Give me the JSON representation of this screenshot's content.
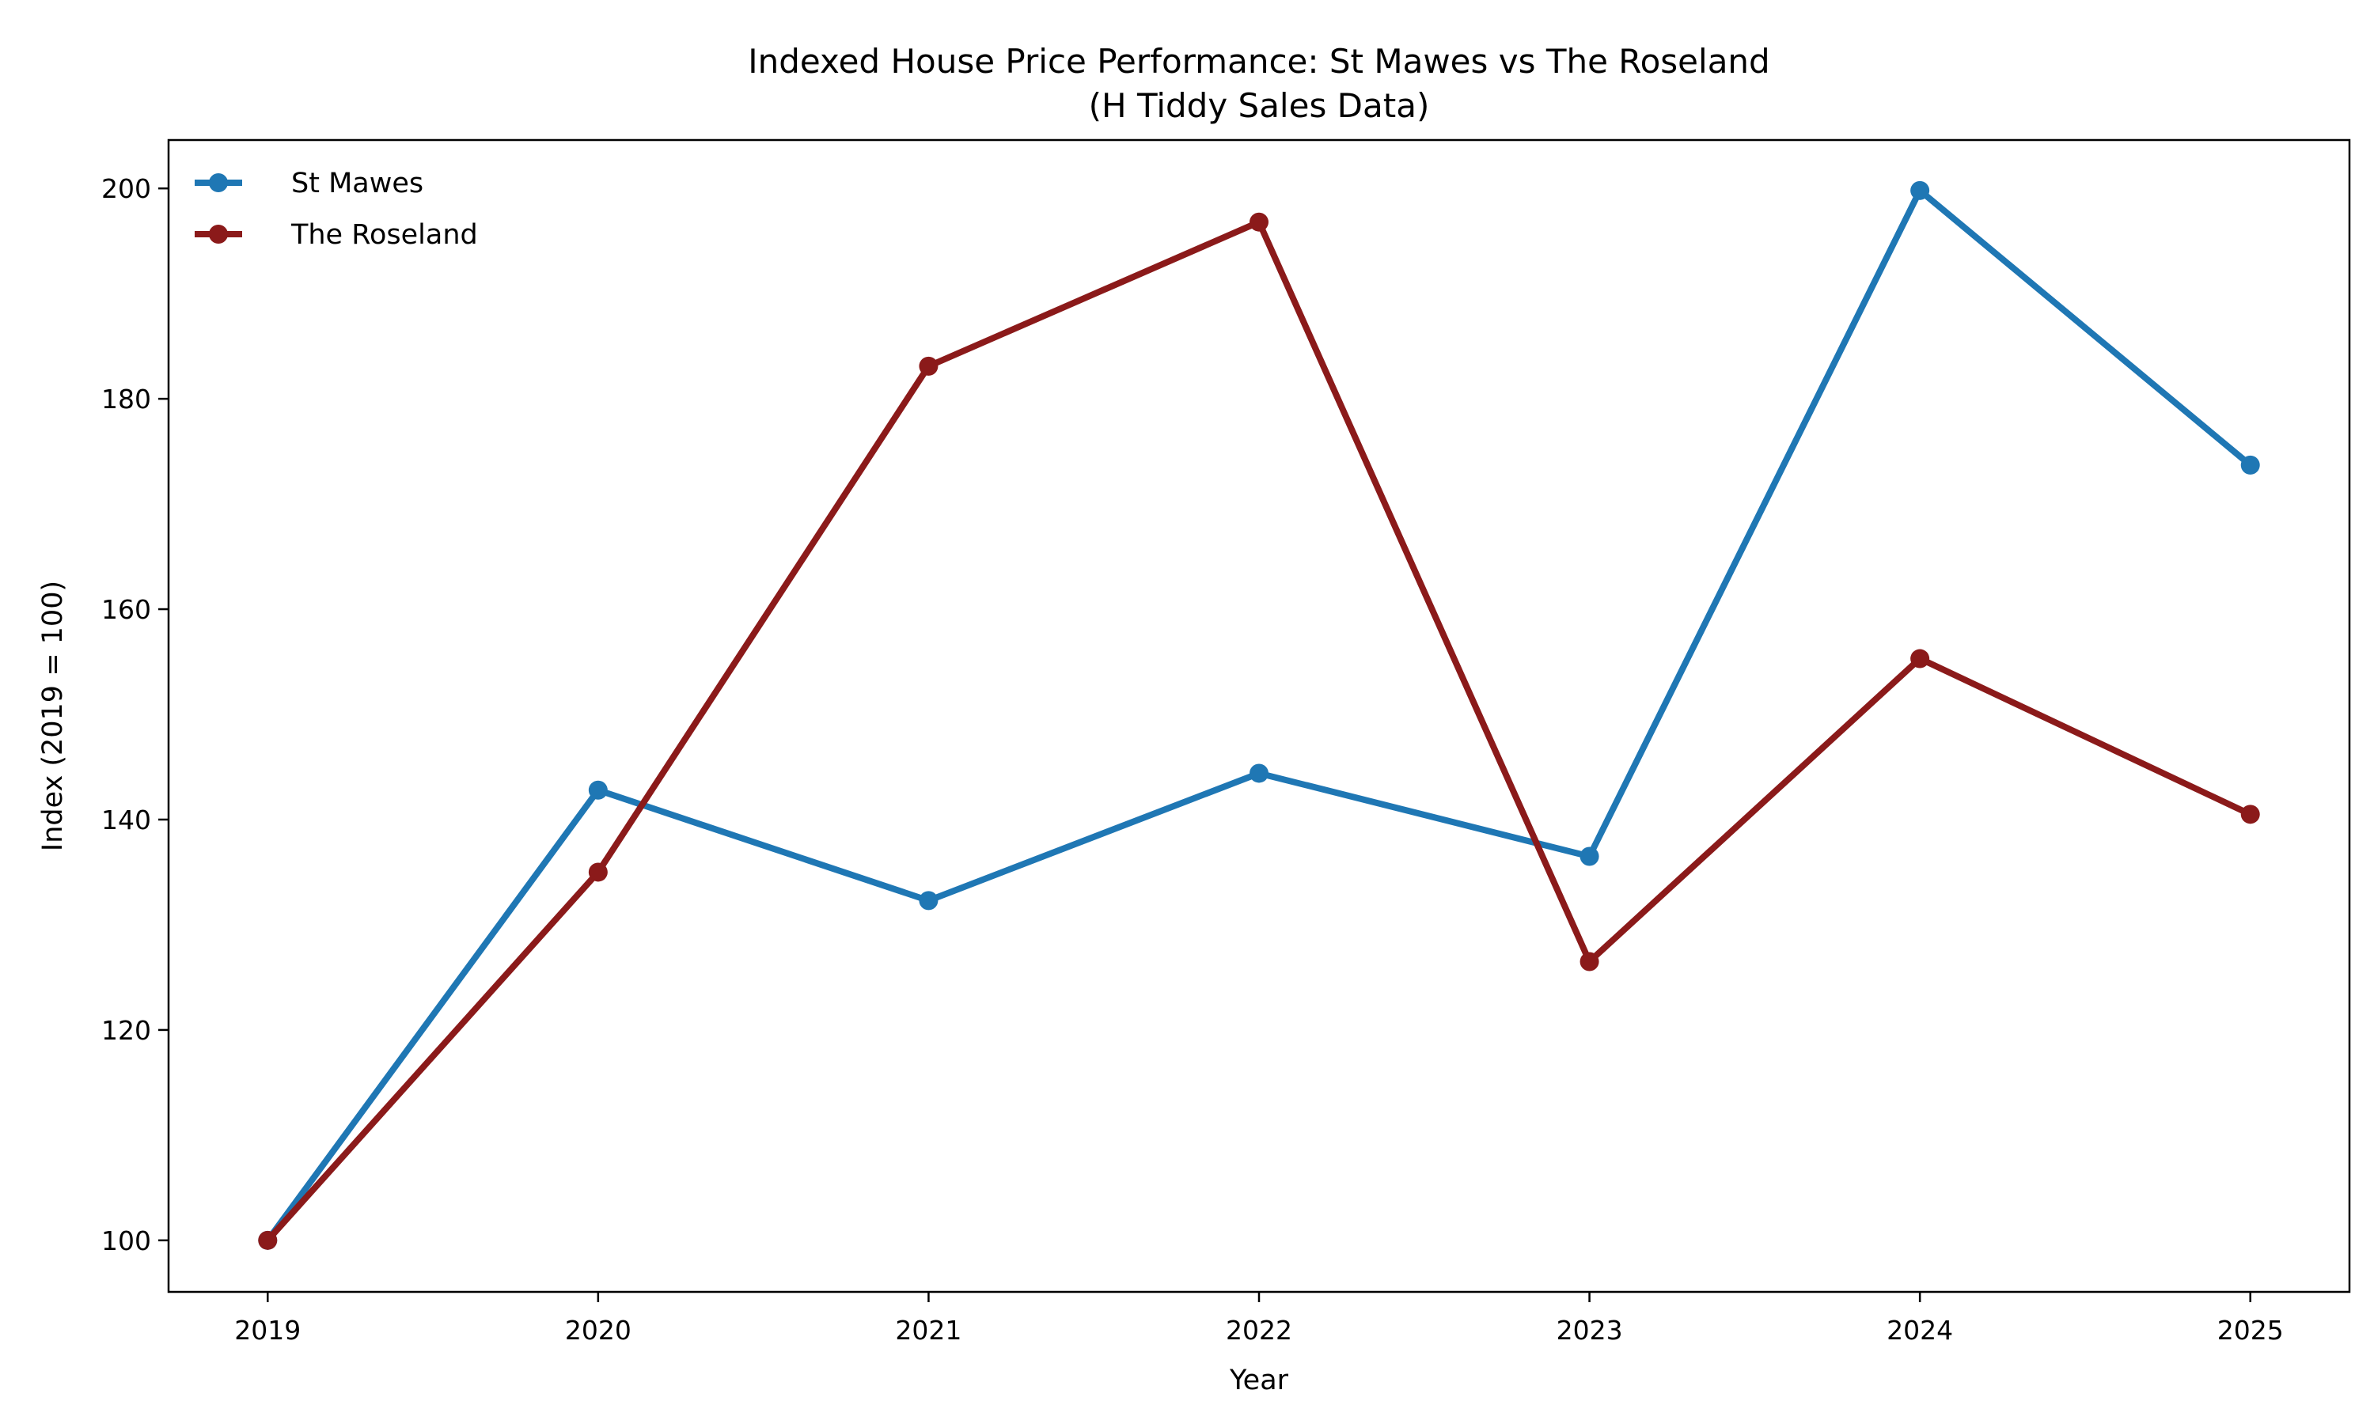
{
  "chart_data": {
    "type": "line",
    "title": "Indexed House Price Performance: St Mawes vs The Roseland",
    "subtitle": "(H Tiddy Sales Data)",
    "xlabel": "Year",
    "ylabel": "Index (2019 = 100)",
    "x": [
      2019,
      2020,
      2021,
      2022,
      2023,
      2024,
      2025
    ],
    "xticks": [
      "2019",
      "2020",
      "2021",
      "2022",
      "2023",
      "2024",
      "2025"
    ],
    "yticks": [
      "100",
      "120",
      "140",
      "160",
      "180",
      "200"
    ],
    "xlim": [
      2018.7,
      2025.3
    ],
    "ylim": [
      95.1,
      204.6
    ],
    "grid": false,
    "legend_placement": "top-left",
    "series": [
      {
        "name": "St Mawes",
        "color": "#1f77b4",
        "marker": "circle",
        "values": [
          100,
          142.8,
          132.3,
          144.4,
          136.5,
          199.8,
          173.7
        ]
      },
      {
        "name": "The Roseland",
        "color": "#8b1a1a",
        "marker": "circle",
        "values": [
          100,
          135.0,
          183.1,
          196.8,
          126.5,
          155.3,
          140.5
        ]
      }
    ]
  }
}
